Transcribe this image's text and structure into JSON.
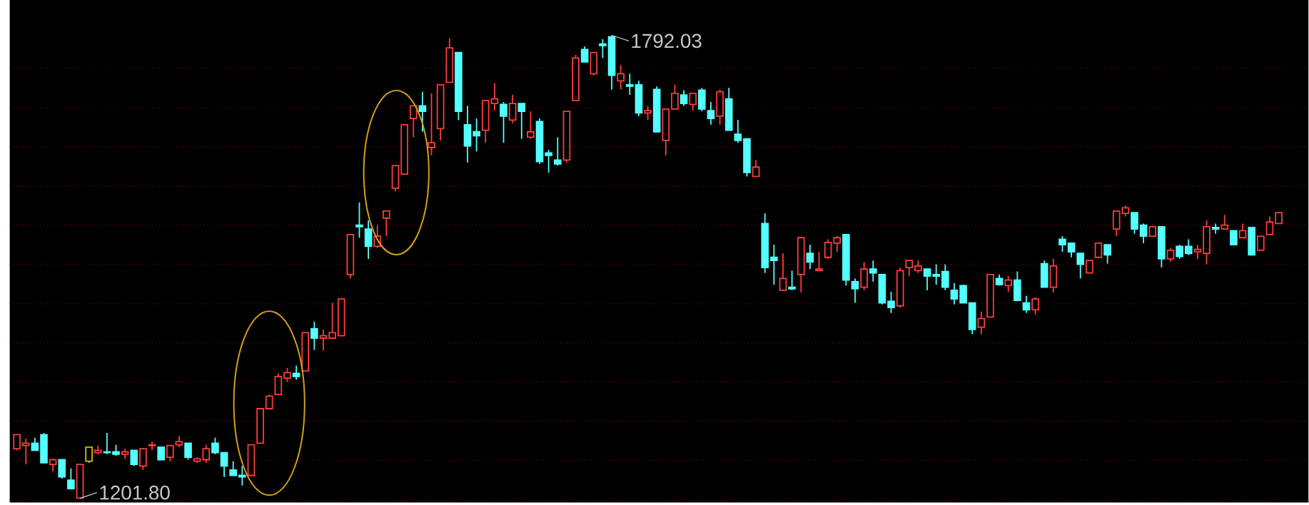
{
  "chart_data": {
    "type": "candlestick",
    "categories": [
      null,
      null,
      null,
      null,
      null,
      null,
      null,
      null,
      null,
      null,
      null,
      null,
      null,
      null,
      null,
      null,
      null,
      null,
      null,
      null,
      null,
      null,
      null,
      null,
      null,
      null,
      null,
      null,
      null,
      null,
      null,
      null,
      null,
      null,
      null,
      null,
      null,
      null,
      null,
      null,
      null,
      null,
      null,
      null,
      null,
      null,
      null,
      null,
      null,
      null,
      null,
      null,
      null,
      null,
      null,
      null,
      null,
      null,
      null,
      null,
      null,
      null,
      null,
      null,
      null,
      null,
      null,
      null,
      null,
      null,
      null,
      null,
      null,
      null,
      null,
      null,
      null,
      null,
      null,
      null,
      null,
      null,
      null,
      null,
      null,
      null,
      null,
      null,
      null,
      null,
      null,
      null,
      null,
      null,
      null,
      null,
      null,
      null,
      null,
      null,
      null,
      null,
      null,
      null,
      null,
      null,
      null,
      null,
      null,
      null,
      null,
      null,
      null,
      null,
      null,
      null,
      null,
      null,
      null,
      null,
      null,
      null,
      null,
      null,
      null,
      null,
      null,
      null,
      null,
      null,
      null,
      null,
      null,
      null,
      null,
      null,
      null,
      null,
      null,
      null,
      null
    ],
    "ohlc": [
      [
        1265,
        1283,
        1263,
        1283
      ],
      [
        1269,
        1278,
        1245,
        1272
      ],
      [
        1272,
        1279,
        1263,
        1263
      ],
      [
        1283,
        1285,
        1247,
        1247
      ],
      [
        1245,
        1252,
        1236,
        1251
      ],
      [
        1251,
        1251,
        1227,
        1229
      ],
      [
        1225,
        1240,
        1213,
        1214
      ],
      [
        1202,
        1245,
        1201.8,
        1245
      ],
      [
        1249,
        1267,
        1247,
        1267
      ],
      [
        1260,
        1269,
        1258,
        1263
      ],
      [
        1261,
        1285,
        1258,
        1260
      ],
      [
        1261,
        1270,
        1256,
        1258
      ],
      [
        1258,
        1265,
        1252,
        1261
      ],
      [
        1263,
        1263,
        1243,
        1245
      ],
      [
        1243,
        1265,
        1238,
        1265
      ],
      [
        1269,
        1274,
        1263,
        1270
      ],
      [
        1267,
        1267,
        1251,
        1251
      ],
      [
        1254,
        1269,
        1249,
        1269
      ],
      [
        1270,
        1281,
        1267,
        1274
      ],
      [
        1272,
        1272,
        1251,
        1254
      ],
      [
        1249,
        1254,
        1247,
        1252
      ],
      [
        1251,
        1270,
        1247,
        1265
      ],
      [
        1272,
        1279,
        1258,
        1260
      ],
      [
        1260,
        1260,
        1229,
        1243
      ],
      [
        1238,
        1249,
        1231,
        1231
      ],
      [
        1231,
        1243,
        1218,
        1229
      ],
      [
        1231,
        1270,
        1231,
        1270
      ],
      [
        1272,
        1316,
        1272,
        1316
      ],
      [
        1316,
        1334,
        1316,
        1332
      ],
      [
        1334,
        1361,
        1334,
        1357
      ],
      [
        1355,
        1368,
        1350,
        1362
      ],
      [
        1361,
        1371,
        1353,
        1357
      ],
      [
        1364,
        1413,
        1364,
        1413
      ],
      [
        1418,
        1427,
        1391,
        1406
      ],
      [
        1406,
        1417,
        1390,
        1409
      ],
      [
        1406,
        1451,
        1406,
        1413
      ],
      [
        1409,
        1456,
        1409,
        1456
      ],
      [
        1487,
        1538,
        1482,
        1538
      ],
      [
        1550,
        1579,
        1534,
        1548
      ],
      [
        1545,
        1556,
        1507,
        1523
      ],
      [
        1523,
        1550,
        1521,
        1536
      ],
      [
        1559,
        1568,
        1536,
        1568
      ],
      [
        1597,
        1626,
        1593,
        1626
      ],
      [
        1615,
        1678,
        1615,
        1678
      ],
      [
        1686,
        1702,
        1662,
        1702
      ],
      [
        1702,
        1720,
        1669,
        1695
      ],
      [
        1649,
        1718,
        1639,
        1655
      ],
      [
        1673,
        1729,
        1658,
        1729
      ],
      [
        1732,
        1788,
        1732,
        1776
      ],
      [
        1770,
        1770,
        1684,
        1695
      ],
      [
        1678,
        1702,
        1630,
        1651
      ],
      [
        1669,
        1686,
        1644,
        1664
      ],
      [
        1671,
        1709,
        1655,
        1709
      ],
      [
        1705,
        1731,
        1696,
        1711
      ],
      [
        1704,
        1707,
        1655,
        1689
      ],
      [
        1684,
        1716,
        1680,
        1705
      ],
      [
        1705,
        1705,
        1660,
        1695
      ],
      [
        1662,
        1695,
        1660,
        1669
      ],
      [
        1682,
        1686,
        1628,
        1631
      ],
      [
        1642,
        1646,
        1617,
        1639
      ],
      [
        1633,
        1662,
        1626,
        1628
      ],
      [
        1633,
        1695,
        1630,
        1695
      ],
      [
        1709,
        1767,
        1709,
        1763
      ],
      [
        1774,
        1778,
        1758,
        1758
      ],
      [
        1743,
        1770,
        1741,
        1770
      ],
      [
        1781,
        1787,
        1763,
        1779
      ],
      [
        1790,
        1792.03,
        1723,
        1741
      ],
      [
        1734,
        1754,
        1723,
        1743
      ],
      [
        1729,
        1743,
        1716,
        1727
      ],
      [
        1729,
        1734,
        1689,
        1693
      ],
      [
        1693,
        1702,
        1684,
        1696
      ],
      [
        1723,
        1727,
        1669,
        1669
      ],
      [
        1658,
        1698,
        1639,
        1698
      ],
      [
        1698,
        1729,
        1698,
        1718
      ],
      [
        1716,
        1722,
        1702,
        1705
      ],
      [
        1704,
        1718,
        1696,
        1718
      ],
      [
        1722,
        1725,
        1695,
        1698
      ],
      [
        1696,
        1707,
        1678,
        1686
      ],
      [
        1689,
        1723,
        1678,
        1720
      ],
      [
        1711,
        1725,
        1671,
        1671
      ],
      [
        1666,
        1684,
        1655,
        1658
      ],
      [
        1660,
        1660,
        1612,
        1617
      ],
      [
        1612,
        1633,
        1612,
        1624
      ],
      [
        1552,
        1565,
        1489,
        1496
      ],
      [
        1509,
        1525,
        1474,
        1505
      ],
      [
        1467,
        1514,
        1467,
        1482
      ],
      [
        1471,
        1492,
        1467,
        1469
      ],
      [
        1487,
        1534,
        1464,
        1534
      ],
      [
        1514,
        1525,
        1494,
        1503
      ],
      [
        1492,
        1516,
        1492,
        1494
      ],
      [
        1509,
        1532,
        1507,
        1528
      ],
      [
        1527,
        1536,
        1516,
        1534
      ],
      [
        1538,
        1538,
        1473,
        1480
      ],
      [
        1478,
        1482,
        1451,
        1469
      ],
      [
        1471,
        1503,
        1467,
        1494
      ],
      [
        1494,
        1505,
        1478,
        1489
      ],
      [
        1487,
        1487,
        1449,
        1451
      ],
      [
        1453,
        1465,
        1438,
        1445
      ],
      [
        1447,
        1496,
        1445,
        1492
      ],
      [
        1496,
        1505,
        1485,
        1505
      ],
      [
        1492,
        1505,
        1489,
        1498
      ],
      [
        1494,
        1494,
        1467,
        1485
      ],
      [
        1487,
        1500,
        1474,
        1485
      ],
      [
        1491,
        1500,
        1467,
        1471
      ],
      [
        1467,
        1476,
        1449,
        1456
      ],
      [
        1473,
        1474,
        1451,
        1451
      ],
      [
        1451,
        1451,
        1411,
        1417
      ],
      [
        1420,
        1440,
        1411,
        1431
      ],
      [
        1433,
        1487,
        1433,
        1487
      ],
      [
        1482,
        1487,
        1473,
        1474
      ],
      [
        1473,
        1485,
        1465,
        1480
      ],
      [
        1480,
        1491,
        1453,
        1454
      ],
      [
        1451,
        1460,
        1438,
        1442
      ],
      [
        1442,
        1458,
        1436,
        1456
      ],
      [
        1501,
        1505,
        1471,
        1471
      ],
      [
        1471,
        1507,
        1464,
        1498
      ],
      [
        1532,
        1536,
        1516,
        1525
      ],
      [
        1527,
        1527,
        1509,
        1516
      ],
      [
        1514,
        1514,
        1482,
        1500
      ],
      [
        1489,
        1505,
        1489,
        1505
      ],
      [
        1509,
        1527,
        1509,
        1527
      ],
      [
        1525,
        1525,
        1501,
        1512
      ],
      [
        1545,
        1568,
        1536,
        1568
      ],
      [
        1565,
        1575,
        1561,
        1572
      ],
      [
        1566,
        1566,
        1539,
        1545
      ],
      [
        1550,
        1552,
        1527,
        1536
      ],
      [
        1536,
        1548,
        1536,
        1548
      ],
      [
        1548,
        1548,
        1496,
        1507
      ],
      [
        1507,
        1521,
        1503,
        1518
      ],
      [
        1523,
        1525,
        1507,
        1510
      ],
      [
        1523,
        1532,
        1512,
        1514
      ],
      [
        1516,
        1525,
        1507,
        1519
      ],
      [
        1514,
        1556,
        1500,
        1548
      ],
      [
        1547,
        1552,
        1539,
        1545
      ],
      [
        1545,
        1563,
        1545,
        1550
      ],
      [
        1543,
        1543,
        1525,
        1525
      ],
      [
        1534,
        1552,
        1534,
        1543
      ],
      [
        1547,
        1547,
        1512,
        1512
      ],
      [
        1518,
        1536,
        1518,
        1536
      ],
      [
        1538,
        1561,
        1538,
        1554
      ],
      [
        1552,
        1566,
        1552,
        1566
      ]
    ],
    "colors": [
      "#ff3c3c",
      "#ff3c3c",
      "#54ffff",
      "#54ffff",
      "#ff3c3c",
      "#54ffff",
      "#54ffff",
      "#ff3c3c",
      "#c8c800",
      "#ff3c3c",
      "#54ffff",
      "#54ffff",
      "#ff3c3c",
      "#54ffff",
      "#ff3c3c",
      "#ff3c3c",
      "#54ffff",
      "#ff3c3c",
      "#ff3c3c",
      "#54ffff",
      "#ff3c3c",
      "#ff3c3c",
      "#54ffff",
      "#54ffff",
      "#54ffff",
      "#54ffff",
      "#ff3c3c",
      "#ff3c3c",
      "#ff3c3c",
      "#ff3c3c",
      "#ff3c3c",
      "#54ffff",
      "#ff3c3c",
      "#54ffff",
      "#ff3c3c",
      "#ff3c3c",
      "#ff3c3c",
      "#ff3c3c",
      "#54ffff",
      "#54ffff",
      "#ff3c3c",
      "#ff3c3c",
      "#ff3c3c",
      "#ff3c3c",
      "#ff3c3c",
      "#54ffff",
      "#ff3c3c",
      "#ff3c3c",
      "#ff3c3c",
      "#54ffff",
      "#54ffff",
      "#54ffff",
      "#ff3c3c",
      "#ff3c3c",
      "#54ffff",
      "#ff3c3c",
      "#54ffff",
      "#ff3c3c",
      "#54ffff",
      "#54ffff",
      "#54ffff",
      "#ff3c3c",
      "#ff3c3c",
      "#54ffff",
      "#ff3c3c",
      "#54ffff",
      "#54ffff",
      "#ff3c3c",
      "#54ffff",
      "#54ffff",
      "#ff3c3c",
      "#54ffff",
      "#ff3c3c",
      "#ff3c3c",
      "#54ffff",
      "#ff3c3c",
      "#54ffff",
      "#54ffff",
      "#ff3c3c",
      "#54ffff",
      "#54ffff",
      "#54ffff",
      "#ff3c3c",
      "#54ffff",
      "#54ffff",
      "#ff3c3c",
      "#54ffff",
      "#ff3c3c",
      "#54ffff",
      "#ff3c3c",
      "#ff3c3c",
      "#ff3c3c",
      "#54ffff",
      "#54ffff",
      "#ff3c3c",
      "#54ffff",
      "#54ffff",
      "#54ffff",
      "#ff3c3c",
      "#ff3c3c",
      "#ff3c3c",
      "#54ffff",
      "#54ffff",
      "#54ffff",
      "#54ffff",
      "#54ffff",
      "#54ffff",
      "#ff3c3c",
      "#ff3c3c",
      "#54ffff",
      "#ff3c3c",
      "#54ffff",
      "#54ffff",
      "#ff3c3c",
      "#54ffff",
      "#ff3c3c",
      "#54ffff",
      "#54ffff",
      "#54ffff",
      "#ff3c3c",
      "#ff3c3c",
      "#54ffff",
      "#ff3c3c",
      "#ff3c3c",
      "#54ffff",
      "#54ffff",
      "#ff3c3c",
      "#54ffff",
      "#ff3c3c",
      "#54ffff",
      "#54ffff",
      "#ff3c3c",
      "#ff3c3c",
      "#54ffff",
      "#ff3c3c",
      "#54ffff",
      "#ff3c3c",
      "#54ffff",
      "#ff3c3c",
      "#ff3c3c",
      "#ff3c3c"
    ],
    "ylim": [
      1196.5,
      1837
    ],
    "yticks": [
      {
        "value": 1200,
        "label": null
      },
      {
        "value": 1250,
        "label": null
      },
      {
        "value": 1300,
        "label": null
      },
      {
        "value": 1350,
        "label": null
      },
      {
        "value": 1400,
        "label": null
      },
      {
        "value": 1450,
        "label": null
      },
      {
        "value": 1500,
        "label": null
      },
      {
        "value": 1550,
        "label": null
      },
      {
        "value": 1600,
        "label": null
      },
      {
        "value": 1650,
        "label": null
      },
      {
        "value": 1700,
        "label": null
      },
      {
        "value": 1750,
        "label": null
      }
    ],
    "grid": "y",
    "annotations": [
      "1792.03",
      "1201.80"
    ]
  }
}
